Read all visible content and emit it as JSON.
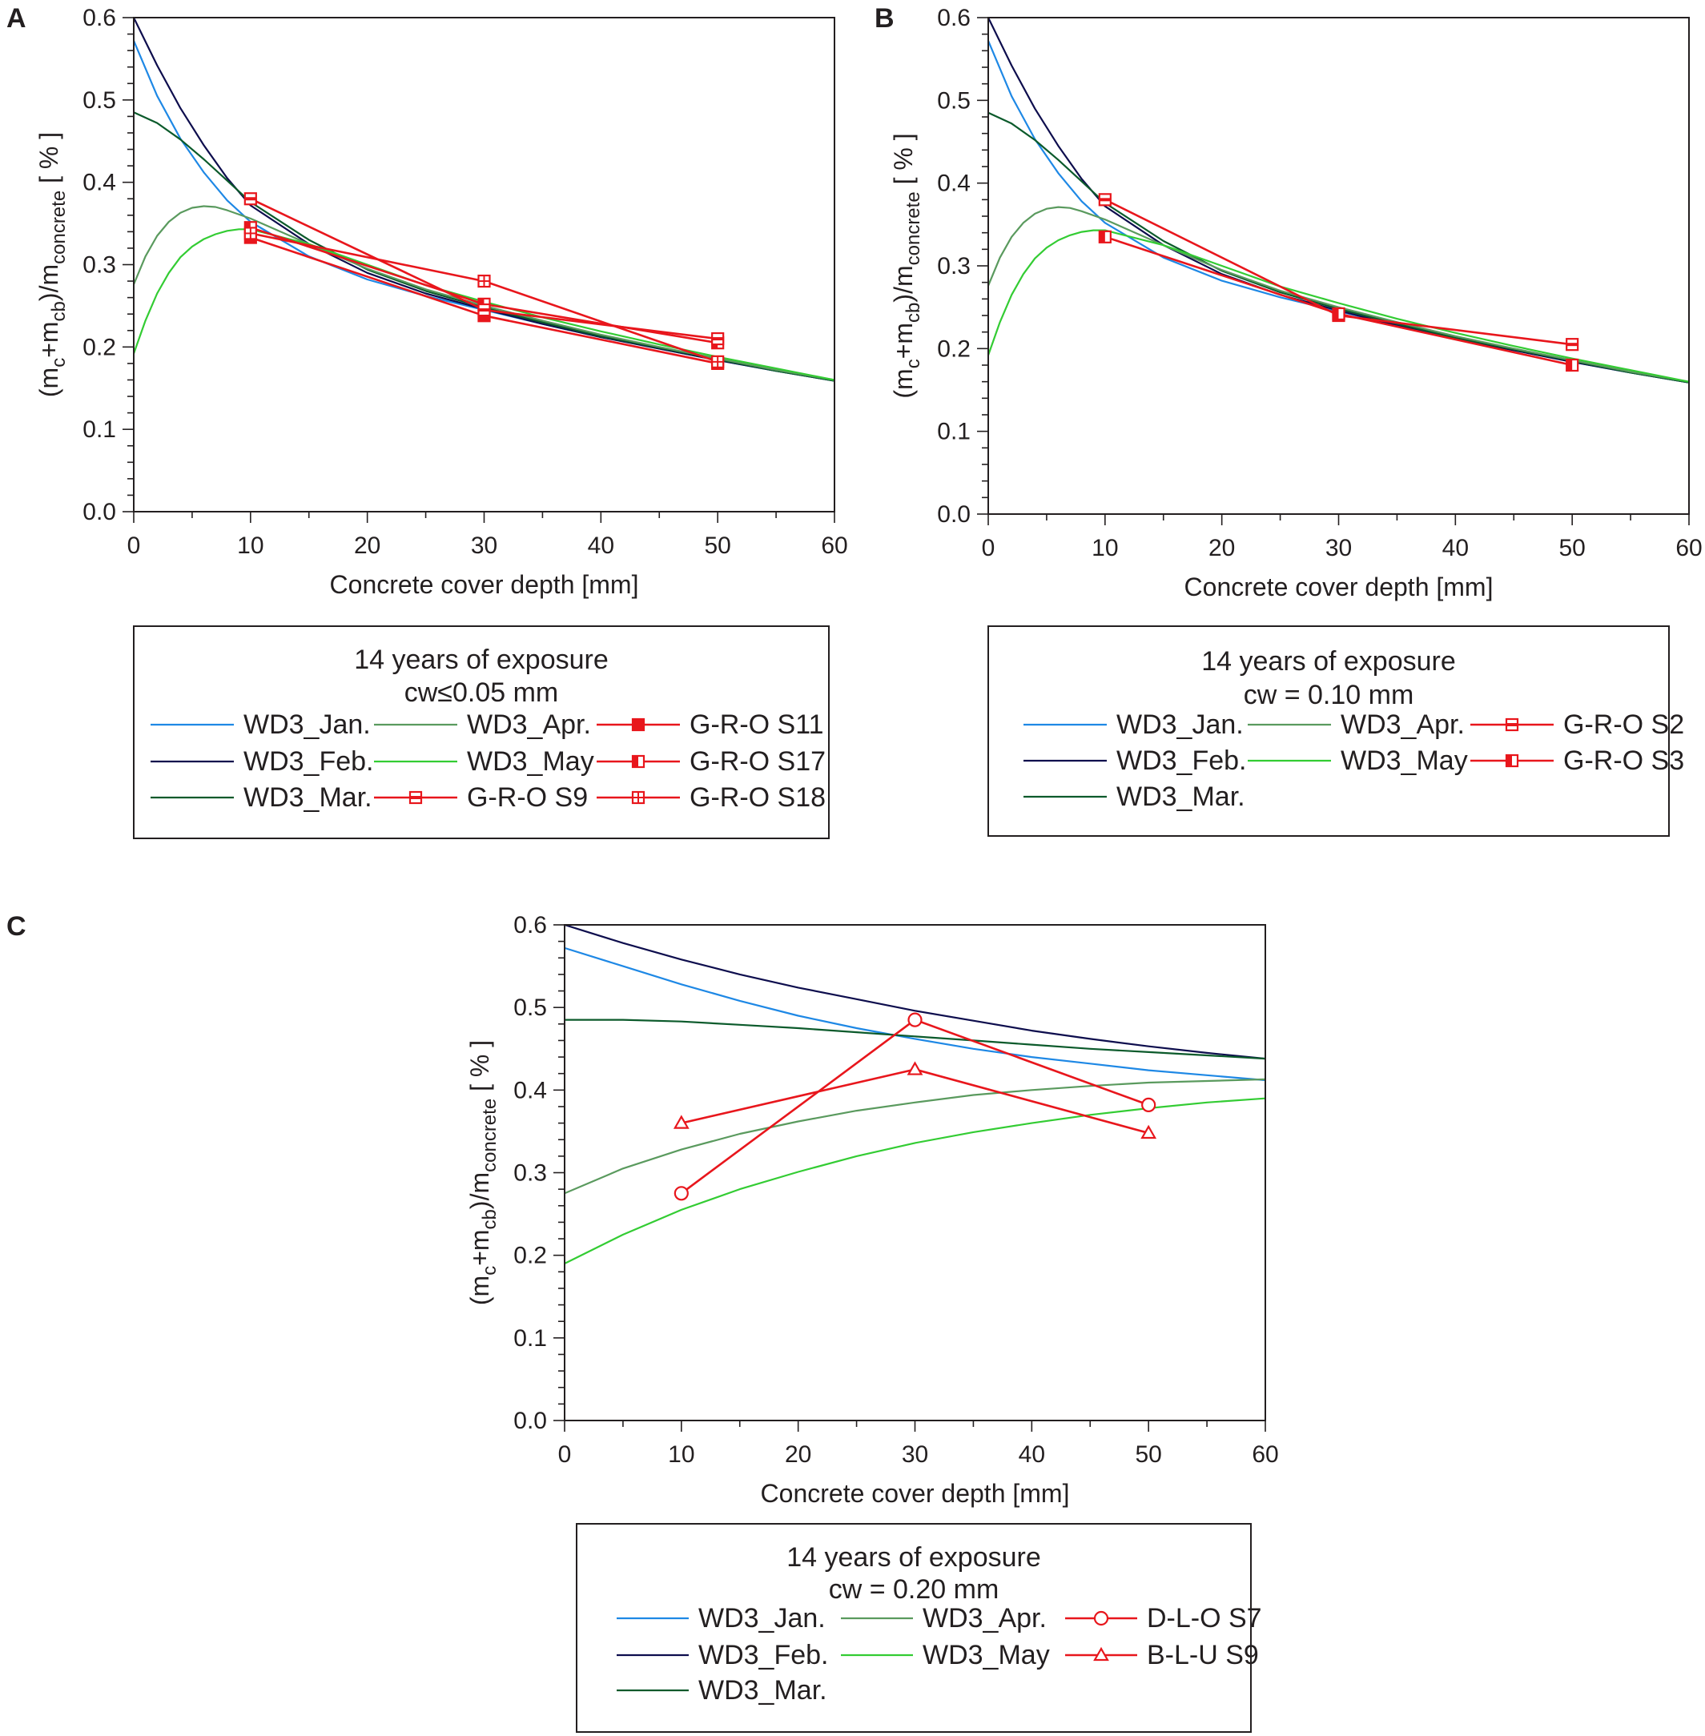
{
  "figure": {
    "common": {
      "xlabel": "Concrete cover depth [mm]",
      "ylabel_parts": {
        "open": "(m",
        "c": "c",
        "plus": "+m",
        "cb": "cb",
        "mid": ")/m",
        "concrete": "concrete",
        "unit": " [ % ]"
      },
      "xlim": [
        0,
        60
      ],
      "ylim": [
        0,
        0.6
      ],
      "xticks": [
        "0",
        "10",
        "20",
        "30",
        "40",
        "50",
        "60"
      ],
      "yticks": [
        "0.0",
        "0.1",
        "0.2",
        "0.3",
        "0.4",
        "0.5",
        "0.6"
      ],
      "colors": {
        "jan": "#1e88e5",
        "feb": "#0d0d4d",
        "mar": "#0b5a2b",
        "apr": "#5a9a5e",
        "may": "#33cc33",
        "measured": "#e8161c",
        "axis": "#231f20"
      }
    },
    "panels": [
      {
        "letter": "A",
        "legend": {
          "title": "14 years of exposure",
          "subtitle": "cw≤0.05 mm"
        }
      },
      {
        "letter": "B",
        "legend": {
          "title": "14 years of exposure",
          "subtitle": "cw = 0.10 mm"
        }
      },
      {
        "letter": "C",
        "legend": {
          "title": "14 years of exposure",
          "subtitle": "cw = 0.20 mm"
        }
      }
    ]
  },
  "chart_data": [
    {
      "type": "line",
      "panel": "A",
      "title": "",
      "xlabel": "Concrete cover depth [mm]",
      "ylabel": "(mc+mcb)/mconcrete [ % ]",
      "xlim": [
        0,
        60
      ],
      "ylim": [
        0,
        0.6
      ],
      "legend_title": "14 years of exposure",
      "legend_subtitle": "cw≤0.05 mm",
      "series": [
        {
          "name": "WD3_Jan.",
          "kind": "model",
          "color": "#1e88e5",
          "x": [
            0,
            2,
            4,
            6,
            8,
            10,
            15,
            20,
            25,
            30,
            35,
            40,
            45,
            50,
            55,
            60
          ],
          "values": [
            0.572,
            0.505,
            0.453,
            0.412,
            0.378,
            0.352,
            0.31,
            0.282,
            0.262,
            0.245,
            0.228,
            0.212,
            0.198,
            0.184,
            0.171,
            0.159
          ]
        },
        {
          "name": "WD3_Feb.",
          "kind": "model",
          "color": "#0d0d4d",
          "x": [
            0,
            2,
            4,
            6,
            8,
            10,
            15,
            20,
            25,
            30,
            35,
            40,
            45,
            50,
            55,
            60
          ],
          "values": [
            0.6,
            0.542,
            0.49,
            0.445,
            0.405,
            0.372,
            0.325,
            0.29,
            0.265,
            0.246,
            0.228,
            0.212,
            0.198,
            0.184,
            0.171,
            0.159
          ]
        },
        {
          "name": "WD3_Mar.",
          "kind": "model",
          "color": "#0b5a2b",
          "x": [
            0,
            2,
            4,
            6,
            8,
            10,
            15,
            20,
            25,
            30,
            35,
            40,
            45,
            50,
            55,
            60
          ],
          "values": [
            0.485,
            0.472,
            0.452,
            0.428,
            0.402,
            0.376,
            0.33,
            0.294,
            0.268,
            0.248,
            0.23,
            0.213,
            0.199,
            0.185,
            0.171,
            0.159
          ]
        },
        {
          "name": "WD3_Apr.",
          "kind": "model",
          "color": "#5a9a5e",
          "x": [
            0,
            1,
            2,
            3,
            4,
            5,
            6,
            7,
            8,
            10,
            15,
            20,
            25,
            30,
            35,
            40,
            45,
            50,
            55,
            60
          ],
          "values": [
            0.276,
            0.31,
            0.335,
            0.352,
            0.363,
            0.369,
            0.371,
            0.37,
            0.366,
            0.356,
            0.325,
            0.295,
            0.27,
            0.25,
            0.232,
            0.215,
            0.2,
            0.186,
            0.172,
            0.16
          ]
        },
        {
          "name": "WD3_May",
          "kind": "model",
          "color": "#33cc33",
          "x": [
            0,
            1,
            2,
            3,
            4,
            5,
            6,
            7,
            8,
            9,
            10,
            15,
            20,
            25,
            30,
            35,
            40,
            45,
            50,
            55,
            60
          ],
          "values": [
            0.192,
            0.232,
            0.265,
            0.29,
            0.309,
            0.322,
            0.331,
            0.337,
            0.341,
            0.343,
            0.343,
            0.325,
            0.3,
            0.275,
            0.255,
            0.236,
            0.219,
            0.203,
            0.188,
            0.174,
            0.16
          ]
        },
        {
          "name": "G-R-O S11",
          "kind": "measured",
          "marker": "square-filled",
          "color": "#e8161c",
          "x": [
            10,
            30,
            50
          ],
          "values": [
            0.333,
            0.238,
            0.18
          ]
        },
        {
          "name": "G-R-O S17",
          "kind": "measured",
          "marker": "square-half",
          "color": "#e8161c",
          "x": [
            10,
            30,
            50
          ],
          "values": [
            0.345,
            0.252,
            0.205
          ]
        },
        {
          "name": "G-R-O S9",
          "kind": "measured",
          "marker": "square-bar",
          "color": "#e8161c",
          "x": [
            10,
            30,
            50
          ],
          "values": [
            0.38,
            0.245,
            0.21
          ]
        },
        {
          "name": "G-R-O S18",
          "kind": "measured",
          "marker": "square-cross",
          "color": "#e8161c",
          "x": [
            10,
            30,
            50
          ],
          "values": [
            0.338,
            0.28,
            0.182
          ]
        }
      ]
    },
    {
      "type": "line",
      "panel": "B",
      "title": "",
      "xlabel": "Concrete cover depth [mm]",
      "ylabel": "(mc+mcb)/mconcrete [ % ]",
      "xlim": [
        0,
        60
      ],
      "ylim": [
        0,
        0.6
      ],
      "legend_title": "14 years of exposure",
      "legend_subtitle": "cw = 0.10 mm",
      "series": [
        {
          "name": "WD3_Jan.",
          "kind": "model",
          "color": "#1e88e5",
          "x": [
            0,
            2,
            4,
            6,
            8,
            10,
            15,
            20,
            25,
            30,
            35,
            40,
            45,
            50,
            55,
            60
          ],
          "values": [
            0.572,
            0.505,
            0.453,
            0.412,
            0.378,
            0.352,
            0.31,
            0.282,
            0.262,
            0.245,
            0.228,
            0.212,
            0.198,
            0.184,
            0.171,
            0.159
          ]
        },
        {
          "name": "WD3_Feb.",
          "kind": "model",
          "color": "#0d0d4d",
          "x": [
            0,
            2,
            4,
            6,
            8,
            10,
            15,
            20,
            25,
            30,
            35,
            40,
            45,
            50,
            55,
            60
          ],
          "values": [
            0.6,
            0.542,
            0.49,
            0.445,
            0.405,
            0.372,
            0.325,
            0.29,
            0.265,
            0.246,
            0.228,
            0.212,
            0.198,
            0.184,
            0.171,
            0.159
          ]
        },
        {
          "name": "WD3_Mar.",
          "kind": "model",
          "color": "#0b5a2b",
          "x": [
            0,
            2,
            4,
            6,
            8,
            10,
            15,
            20,
            25,
            30,
            35,
            40,
            45,
            50,
            55,
            60
          ],
          "values": [
            0.485,
            0.472,
            0.452,
            0.428,
            0.402,
            0.376,
            0.33,
            0.294,
            0.268,
            0.248,
            0.23,
            0.213,
            0.199,
            0.185,
            0.171,
            0.159
          ]
        },
        {
          "name": "WD3_Apr.",
          "kind": "model",
          "color": "#5a9a5e",
          "x": [
            0,
            1,
            2,
            3,
            4,
            5,
            6,
            7,
            8,
            10,
            15,
            20,
            25,
            30,
            35,
            40,
            45,
            50,
            55,
            60
          ],
          "values": [
            0.276,
            0.31,
            0.335,
            0.352,
            0.363,
            0.369,
            0.371,
            0.37,
            0.366,
            0.356,
            0.325,
            0.295,
            0.27,
            0.25,
            0.232,
            0.215,
            0.2,
            0.186,
            0.172,
            0.16
          ]
        },
        {
          "name": "WD3_May",
          "kind": "model",
          "color": "#33cc33",
          "x": [
            0,
            1,
            2,
            3,
            4,
            5,
            6,
            7,
            8,
            9,
            10,
            15,
            20,
            25,
            30,
            35,
            40,
            45,
            50,
            55,
            60
          ],
          "values": [
            0.192,
            0.232,
            0.265,
            0.29,
            0.309,
            0.322,
            0.331,
            0.337,
            0.341,
            0.343,
            0.343,
            0.325,
            0.3,
            0.275,
            0.255,
            0.236,
            0.219,
            0.203,
            0.188,
            0.174,
            0.16
          ]
        },
        {
          "name": "G-R-O S2",
          "kind": "measured",
          "marker": "square-bar",
          "color": "#e8161c",
          "x": [
            10,
            30,
            50
          ],
          "values": [
            0.38,
            0.24,
            0.205
          ]
        },
        {
          "name": "G-R-O S3",
          "kind": "measured",
          "marker": "square-half",
          "color": "#e8161c",
          "x": [
            10,
            30,
            50
          ],
          "values": [
            0.335,
            0.242,
            0.18
          ]
        }
      ]
    },
    {
      "type": "line",
      "panel": "C",
      "title": "",
      "xlabel": "Concrete cover depth [mm]",
      "ylabel": "(mc+mcb)/mconcrete [ % ]",
      "xlim": [
        0,
        60
      ],
      "ylim": [
        0,
        0.6
      ],
      "legend_title": "14 years of exposure",
      "legend_subtitle": "cw = 0.20 mm",
      "series": [
        {
          "name": "WD3_Jan.",
          "kind": "model",
          "color": "#1e88e5",
          "x": [
            0,
            5,
            10,
            15,
            20,
            25,
            30,
            35,
            40,
            45,
            50,
            55,
            60
          ],
          "values": [
            0.572,
            0.55,
            0.528,
            0.508,
            0.49,
            0.475,
            0.462,
            0.45,
            0.44,
            0.432,
            0.424,
            0.418,
            0.412
          ]
        },
        {
          "name": "WD3_Feb.",
          "kind": "model",
          "color": "#0d0d4d",
          "x": [
            0,
            5,
            10,
            15,
            20,
            25,
            30,
            35,
            40,
            45,
            50,
            55,
            60
          ],
          "values": [
            0.6,
            0.578,
            0.558,
            0.54,
            0.524,
            0.51,
            0.496,
            0.484,
            0.472,
            0.462,
            0.453,
            0.445,
            0.438
          ]
        },
        {
          "name": "WD3_Mar.",
          "kind": "model",
          "color": "#0b5a2b",
          "x": [
            0,
            5,
            10,
            15,
            20,
            25,
            30,
            35,
            40,
            45,
            50,
            55,
            60
          ],
          "values": [
            0.485,
            0.485,
            0.483,
            0.479,
            0.475,
            0.47,
            0.465,
            0.46,
            0.455,
            0.45,
            0.446,
            0.442,
            0.438
          ]
        },
        {
          "name": "WD3_Apr.",
          "kind": "model",
          "color": "#5a9a5e",
          "x": [
            0,
            5,
            10,
            15,
            20,
            25,
            30,
            35,
            40,
            45,
            50,
            55,
            60
          ],
          "values": [
            0.275,
            0.305,
            0.328,
            0.347,
            0.362,
            0.375,
            0.385,
            0.394,
            0.4,
            0.405,
            0.409,
            0.411,
            0.413
          ]
        },
        {
          "name": "WD3_May",
          "kind": "model",
          "color": "#33cc33",
          "x": [
            0,
            5,
            10,
            15,
            20,
            25,
            30,
            35,
            40,
            45,
            50,
            55,
            60
          ],
          "values": [
            0.19,
            0.225,
            0.255,
            0.28,
            0.301,
            0.32,
            0.336,
            0.349,
            0.36,
            0.37,
            0.378,
            0.385,
            0.39
          ]
        },
        {
          "name": "D-L-O S7",
          "kind": "measured",
          "marker": "circle",
          "color": "#e8161c",
          "x": [
            10,
            30,
            50
          ],
          "values": [
            0.275,
            0.485,
            0.382
          ]
        },
        {
          "name": "B-L-U S9",
          "kind": "measured",
          "marker": "triangle",
          "color": "#e8161c",
          "x": [
            10,
            30,
            50
          ],
          "values": [
            0.36,
            0.425,
            0.348
          ]
        }
      ]
    }
  ]
}
